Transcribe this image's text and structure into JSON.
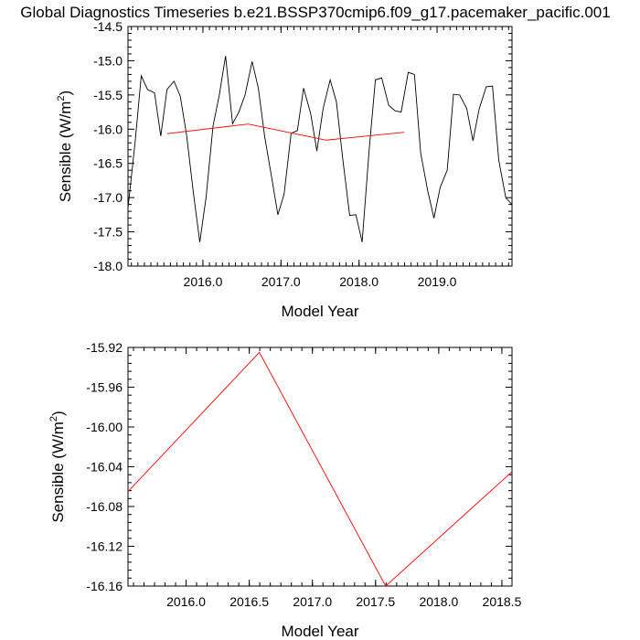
{
  "title": "Global Diagnostics Timeseries b.e21.BSSP370cmip6.f09_g17.pacemaker_pacific.001",
  "chart_data": [
    {
      "type": "line",
      "xlabel": "Model Year",
      "ylabel": "Sensible (W/m",
      "ylabel_sup": "2",
      "ylabel_close": ")",
      "xlim": [
        2015.04,
        2019.96
      ],
      "ylim": [
        -18.0,
        -14.5
      ],
      "xticks": [
        2016.0,
        2017.0,
        2018.0,
        2019.0
      ],
      "xtick_labels": [
        "2016.0",
        "2017.0",
        "2018.0",
        "2019.0"
      ],
      "yticks": [
        -18.0,
        -17.5,
        -17.0,
        -16.5,
        -16.0,
        -15.5,
        -15.0,
        -14.5
      ],
      "ytick_labels": [
        "-18.0",
        "-17.5",
        "-17.0",
        "-16.5",
        "-16.0",
        "-15.5",
        "-15.0",
        "-14.5"
      ],
      "grid": false,
      "series": [
        {
          "color": "#000000",
          "x": [
            2015.04,
            2015.13,
            2015.21,
            2015.29,
            2015.38,
            2015.46,
            2015.54,
            2015.63,
            2015.71,
            2015.79,
            2015.88,
            2015.96,
            2016.04,
            2016.13,
            2016.21,
            2016.29,
            2016.38,
            2016.46,
            2016.54,
            2016.63,
            2016.71,
            2016.79,
            2016.88,
            2016.96,
            2017.04,
            2017.13,
            2017.21,
            2017.29,
            2017.38,
            2017.46,
            2017.54,
            2017.63,
            2017.71,
            2017.79,
            2017.88,
            2017.96,
            2018.04,
            2018.13,
            2018.21,
            2018.29,
            2018.38,
            2018.46,
            2018.54,
            2018.63,
            2018.71,
            2018.79,
            2018.88,
            2018.96,
            2019.04,
            2019.13,
            2019.21,
            2019.29,
            2019.38,
            2019.46,
            2019.54,
            2019.63,
            2019.71,
            2019.79,
            2019.88,
            2019.96
          ],
          "y": [
            -17.15,
            -16.2,
            -15.22,
            -15.42,
            -15.47,
            -16.1,
            -15.42,
            -15.3,
            -15.52,
            -16.08,
            -16.95,
            -17.65,
            -17.0,
            -15.95,
            -15.5,
            -14.93,
            -15.92,
            -15.75,
            -15.5,
            -15.01,
            -15.4,
            -16.1,
            -16.7,
            -17.25,
            -16.95,
            -16.06,
            -16.02,
            -15.4,
            -15.77,
            -16.32,
            -15.7,
            -15.28,
            -15.6,
            -16.42,
            -17.26,
            -17.25,
            -17.65,
            -16.3,
            -15.28,
            -15.25,
            -15.65,
            -15.73,
            -15.75,
            -15.17,
            -15.2,
            -16.35,
            -16.9,
            -17.3,
            -16.85,
            -16.6,
            -15.49,
            -15.5,
            -15.7,
            -16.17,
            -15.7,
            -15.38,
            -15.37,
            -16.45,
            -17.0,
            -17.1
          ]
        },
        {
          "color": "#ff0000",
          "x": [
            2015.54,
            2016.58,
            2017.58,
            2018.58
          ],
          "y": [
            -16.065,
            -15.925,
            -16.16,
            -16.045
          ]
        }
      ]
    },
    {
      "type": "line",
      "xlabel": "Model Year",
      "ylabel": "Sensible (W/m",
      "ylabel_sup": "2",
      "ylabel_close": ")",
      "xlim": [
        2015.54,
        2018.58
      ],
      "ylim": [
        -16.16,
        -15.92
      ],
      "xticks": [
        2016.0,
        2016.5,
        2017.0,
        2017.5,
        2018.0,
        2018.5
      ],
      "xtick_labels": [
        "2016.0",
        "2016.5",
        "2017.0",
        "2017.5",
        "2018.0",
        "2018.5"
      ],
      "yticks": [
        -16.16,
        -16.12,
        -16.08,
        -16.04,
        -16.0,
        -15.96,
        -15.92
      ],
      "ytick_labels": [
        "-16.16",
        "-16.12",
        "-16.08",
        "-16.04",
        "-16.00",
        "-15.96",
        "-15.92"
      ],
      "grid": false,
      "series": [
        {
          "color": "#ff0000",
          "x": [
            2015.54,
            2016.58,
            2017.58,
            2018.58
          ],
          "y": [
            -16.065,
            -15.925,
            -16.16,
            -16.045
          ]
        }
      ]
    }
  ]
}
